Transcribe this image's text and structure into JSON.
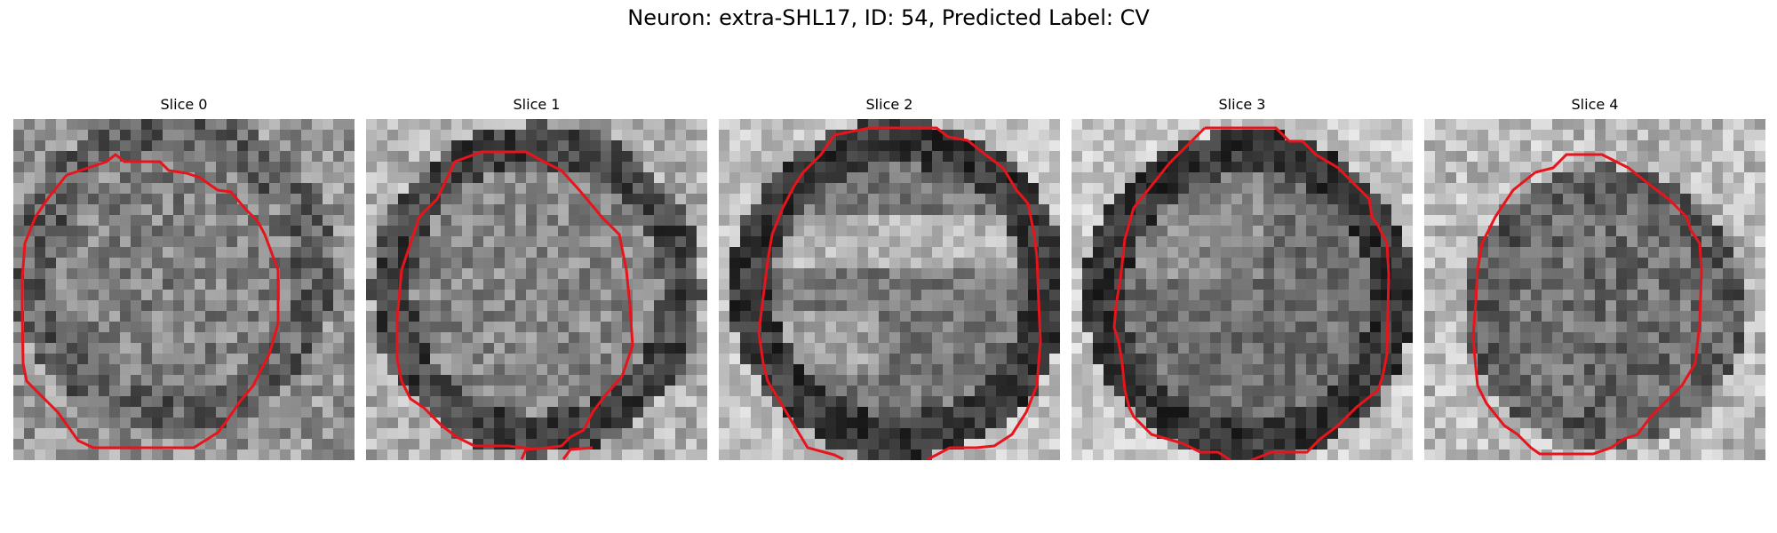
{
  "figure": {
    "title": "Neuron: extra-SHL17, ID: 54, Predicted Label: CV",
    "contour_color": "#e8141c"
  },
  "slices": [
    {
      "title": "Slice 0"
    },
    {
      "title": "Slice 1"
    },
    {
      "title": "Slice 2"
    },
    {
      "title": "Slice 3"
    },
    {
      "title": "Slice 4"
    }
  ]
}
